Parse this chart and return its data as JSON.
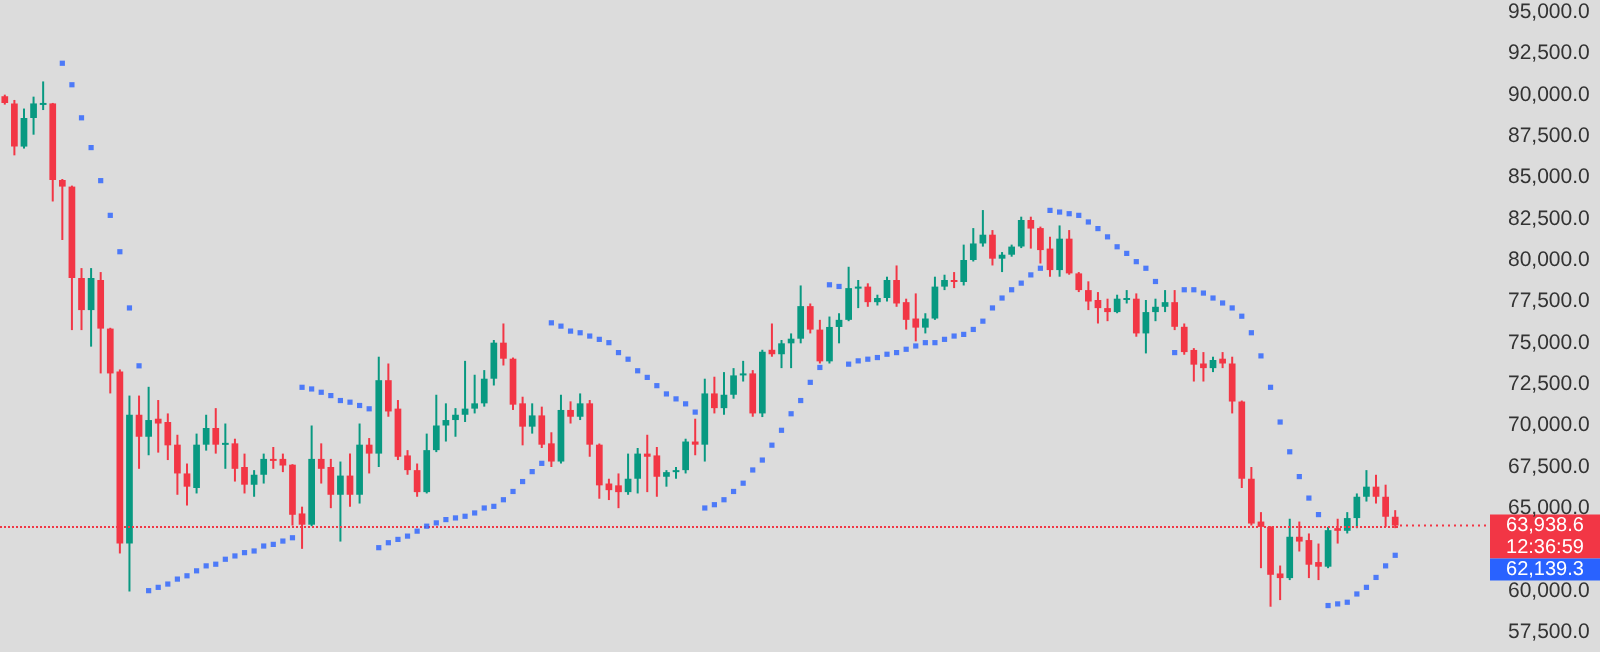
{
  "chart_data": {
    "type": "candlestick",
    "categories": [
      null,
      null,
      null,
      null,
      null,
      null,
      null,
      null,
      null,
      null,
      null,
      null,
      null,
      null,
      null,
      null,
      null,
      null,
      null,
      null,
      null,
      null,
      null,
      null,
      null,
      null,
      null,
      null,
      null,
      null,
      null,
      null,
      null,
      null,
      null,
      null,
      null,
      null,
      null,
      null,
      null,
      null,
      null,
      null,
      null,
      null,
      null,
      null,
      null,
      null,
      null,
      null,
      null,
      null,
      null,
      null,
      null,
      null,
      null,
      null,
      null,
      null,
      null,
      null,
      null,
      null,
      null,
      null,
      null,
      null,
      null,
      null,
      null,
      null,
      null,
      null,
      null,
      null,
      null,
      null,
      null,
      null,
      null,
      null,
      null,
      null,
      null,
      null,
      null,
      null,
      null,
      null,
      null,
      null,
      null,
      null,
      null,
      null,
      null,
      null,
      null,
      null,
      null,
      null,
      null,
      null,
      null,
      null,
      null,
      null,
      null,
      null,
      null,
      null,
      null,
      null,
      null,
      null,
      null,
      null,
      null,
      null,
      null,
      null,
      null,
      null,
      null,
      null,
      null,
      null,
      null,
      null,
      null,
      null,
      null,
      null,
      null,
      null,
      null,
      null,
      null,
      null,
      null,
      null,
      null,
      null
    ],
    "ohlc": [
      [
        89900,
        90000,
        89400,
        89500
      ],
      [
        89470,
        89680,
        86330,
        86860
      ],
      [
        86860,
        89160,
        86740,
        88590
      ],
      [
        88590,
        89880,
        87580,
        89470
      ],
      [
        89470,
        90800,
        89070,
        89500
      ],
      [
        89470,
        89500,
        83540,
        84840
      ],
      [
        84840,
        84900,
        81210,
        84440
      ],
      [
        84440,
        84500,
        75760,
        78910
      ],
      [
        78910,
        79510,
        75760,
        76970
      ],
      [
        76970,
        79510,
        74760,
        78910
      ],
      [
        78790,
        79270,
        73140,
        75850
      ],
      [
        75850,
        75900,
        71930,
        73140
      ],
      [
        73260,
        73380,
        62250,
        62850
      ],
      [
        62850,
        71800,
        59950,
        70640
      ],
      [
        70640,
        71800,
        67370,
        69310
      ],
      [
        69310,
        72330,
        68190,
        70320
      ],
      [
        70400,
        71530,
        68350,
        70110
      ],
      [
        70200,
        70720,
        67900,
        68790
      ],
      [
        68830,
        69430,
        65800,
        67090
      ],
      [
        67090,
        67690,
        65150,
        66290
      ],
      [
        66210,
        69500,
        65880,
        68830
      ],
      [
        68830,
        70640,
        68470,
        69840
      ],
      [
        69840,
        71040,
        68290,
        68830
      ],
      [
        68910,
        70110,
        67370,
        68940
      ],
      [
        68910,
        69190,
        66600,
        67370
      ],
      [
        67480,
        68290,
        65880,
        66410
      ],
      [
        66410,
        67290,
        65680,
        67010
      ],
      [
        67010,
        68290,
        66480,
        67970
      ],
      [
        67970,
        68690,
        67370,
        67940
      ],
      [
        67970,
        68290,
        67170,
        67570
      ],
      [
        67620,
        67650,
        63940,
        64590
      ],
      [
        64670,
        65080,
        62530,
        63990
      ],
      [
        63990,
        69990,
        63900,
        67970
      ],
      [
        67970,
        68910,
        66480,
        67370
      ],
      [
        67480,
        67970,
        64990,
        65800
      ],
      [
        65800,
        67810,
        62970,
        66960
      ],
      [
        66960,
        68290,
        65080,
        65800
      ],
      [
        65800,
        70110,
        65270,
        68830
      ],
      [
        68830,
        69230,
        67090,
        68290
      ],
      [
        68290,
        74150,
        67480,
        72730
      ],
      [
        72730,
        73740,
        70520,
        70840
      ],
      [
        71010,
        71530,
        67900,
        68100
      ],
      [
        68180,
        68500,
        67010,
        67290
      ],
      [
        67290,
        67690,
        65680,
        65960
      ],
      [
        65960,
        69500,
        65880,
        68500
      ],
      [
        68500,
        71850,
        68380,
        69990
      ],
      [
        69990,
        71330,
        69020,
        70320
      ],
      [
        70320,
        71040,
        69310,
        70640
      ],
      [
        70640,
        73900,
        70200,
        71010
      ],
      [
        71010,
        73060,
        70720,
        71330
      ],
      [
        71330,
        73340,
        71130,
        72820
      ],
      [
        72820,
        75160,
        72410,
        75000
      ],
      [
        75000,
        76160,
        73620,
        74030
      ],
      [
        74030,
        74100,
        70930,
        71250
      ],
      [
        71330,
        71730,
        68790,
        69920
      ],
      [
        69920,
        71330,
        69500,
        70600
      ],
      [
        70600,
        71130,
        68630,
        68830
      ],
      [
        68910,
        69580,
        67480,
        67810
      ],
      [
        67810,
        71850,
        67690,
        70930
      ],
      [
        70930,
        71450,
        70110,
        70520
      ],
      [
        70520,
        71930,
        70320,
        71330
      ],
      [
        71330,
        71530,
        68100,
        68830
      ],
      [
        68830,
        68900,
        65560,
        66370
      ],
      [
        66480,
        66770,
        65480,
        66080
      ],
      [
        66370,
        67090,
        64990,
        65960
      ],
      [
        65960,
        68290,
        65800,
        66770
      ],
      [
        66770,
        68630,
        65880,
        68290
      ],
      [
        68290,
        69430,
        65960,
        68100
      ],
      [
        68180,
        68690,
        65680,
        66890
      ],
      [
        66890,
        67290,
        66290,
        67170
      ],
      [
        67170,
        67480,
        66770,
        67290
      ],
      [
        67290,
        69190,
        67090,
        69020
      ],
      [
        69020,
        70400,
        68190,
        68830
      ],
      [
        68830,
        72820,
        67810,
        71930
      ],
      [
        71930,
        72940,
        70720,
        71040
      ],
      [
        71040,
        73220,
        70640,
        71850
      ],
      [
        71850,
        73460,
        71610,
        73020
      ],
      [
        73020,
        73900,
        72650,
        73140
      ],
      [
        73140,
        73340,
        70520,
        70720
      ],
      [
        70720,
        74570,
        70500,
        74450
      ],
      [
        74570,
        76160,
        74150,
        74300
      ],
      [
        74300,
        75160,
        73460,
        74960
      ],
      [
        74960,
        75560,
        73460,
        75240
      ],
      [
        75240,
        78460,
        74960,
        77210
      ],
      [
        77210,
        77370,
        75560,
        75790
      ],
      [
        75790,
        76380,
        73740,
        73870
      ],
      [
        73870,
        76580,
        73740,
        75950
      ],
      [
        75950,
        76780,
        74960,
        76380
      ],
      [
        76380,
        79590,
        76300,
        78300
      ],
      [
        78300,
        78790,
        77090,
        78390
      ],
      [
        78390,
        78590,
        77170,
        77450
      ],
      [
        77450,
        77900,
        77250,
        77700
      ],
      [
        77700,
        78990,
        77490,
        78790
      ],
      [
        78790,
        79670,
        77170,
        77370
      ],
      [
        77450,
        77660,
        75790,
        76380
      ],
      [
        76460,
        77980,
        75080,
        75910
      ],
      [
        75910,
        76780,
        75560,
        76460
      ],
      [
        76460,
        78990,
        76380,
        78390
      ],
      [
        78390,
        79110,
        78180,
        78790
      ],
      [
        78790,
        79270,
        78300,
        78670
      ],
      [
        78670,
        80930,
        78460,
        80000
      ],
      [
        80000,
        81930,
        79910,
        81000
      ],
      [
        81000,
        83020,
        80810,
        81530
      ],
      [
        81530,
        81810,
        79670,
        80080
      ],
      [
        80080,
        80480,
        79270,
        80320
      ],
      [
        80320,
        80930,
        80200,
        80810
      ],
      [
        80810,
        82620,
        80720,
        82420
      ],
      [
        82420,
        82620,
        80690,
        81900
      ],
      [
        81930,
        82020,
        79790,
        80600
      ],
      [
        80690,
        81410,
        78990,
        79390
      ],
      [
        79390,
        82090,
        78990,
        81290
      ],
      [
        81290,
        81810,
        79110,
        79190
      ],
      [
        79190,
        79270,
        78060,
        78180
      ],
      [
        78180,
        78710,
        76970,
        77490
      ],
      [
        77580,
        78060,
        76160,
        77090
      ],
      [
        77090,
        77660,
        76300,
        76850
      ],
      [
        76850,
        77900,
        76780,
        77660
      ],
      [
        77660,
        78180,
        77370,
        77700
      ],
      [
        77660,
        77980,
        75360,
        75560
      ],
      [
        75560,
        77580,
        74350,
        76850
      ],
      [
        76850,
        77660,
        76300,
        77170
      ],
      [
        77170,
        78180,
        76850,
        77450
      ],
      [
        77450,
        78180,
        75760,
        75960
      ],
      [
        75960,
        76160,
        74270,
        74430
      ],
      [
        74560,
        74670,
        72650,
        73670
      ],
      [
        73740,
        74430,
        72650,
        73460
      ],
      [
        73460,
        74150,
        73220,
        73950
      ],
      [
        74030,
        74430,
        73460,
        73740
      ],
      [
        73740,
        74150,
        70720,
        71440
      ],
      [
        71440,
        71500,
        66210,
        66770
      ],
      [
        66770,
        67480,
        63940,
        64060
      ],
      [
        64180,
        64750,
        61360,
        63860
      ],
      [
        63860,
        63900,
        59030,
        60960
      ],
      [
        61040,
        61520,
        59430,
        60760
      ],
      [
        60760,
        64350,
        60640,
        63260
      ],
      [
        63260,
        64180,
        62370,
        62970
      ],
      [
        63060,
        63460,
        60760,
        61570
      ],
      [
        61730,
        62850,
        60640,
        61450
      ],
      [
        61450,
        63860,
        61360,
        63660
      ],
      [
        63780,
        64350,
        62850,
        63620
      ],
      [
        63620,
        64750,
        63460,
        64390
      ],
      [
        64390,
        65880,
        63780,
        65680
      ],
      [
        65680,
        67290,
        65390,
        66290
      ],
      [
        66290,
        67010,
        65270,
        65680
      ],
      [
        65680,
        66410,
        63860,
        64470
      ],
      [
        64470,
        64870,
        63780,
        63938.6
      ]
    ],
    "colors": [
      "#f23645",
      "#f23645",
      "#089981",
      "#089981",
      "#089981",
      "#f23645",
      "#f23645",
      "#f23645",
      "#f23645",
      "#089981",
      "#f23645",
      "#f23645",
      "#f23645",
      "#089981",
      "#f23645",
      "#089981",
      "#f23645",
      "#f23645",
      "#f23645",
      "#f23645",
      "#089981",
      "#089981",
      "#f23645",
      "#089981",
      "#f23645",
      "#f23645",
      "#089981",
      "#089981",
      "#f23645",
      "#f23645",
      "#f23645",
      "#f23645",
      "#089981",
      "#f23645",
      "#f23645",
      "#089981",
      "#f23645",
      "#089981",
      "#f23645",
      "#089981",
      "#f23645",
      "#f23645",
      "#f23645",
      "#f23645",
      "#089981",
      "#089981",
      "#089981",
      "#089981",
      "#089981",
      "#089981",
      "#089981",
      "#089981",
      "#f23645",
      "#f23645",
      "#f23645",
      "#089981",
      "#f23645",
      "#f23645",
      "#089981",
      "#f23645",
      "#089981",
      "#f23645",
      "#f23645",
      "#f23645",
      "#f23645",
      "#089981",
      "#089981",
      "#f23645",
      "#f23645",
      "#089981",
      "#089981",
      "#089981",
      "#f23645",
      "#089981",
      "#f23645",
      "#089981",
      "#089981",
      "#089981",
      "#f23645",
      "#089981",
      "#f23645",
      "#089981",
      "#089981",
      "#089981",
      "#f23645",
      "#f23645",
      "#089981",
      "#089981",
      "#089981",
      "#089981",
      "#f23645",
      "#089981",
      "#089981",
      "#f23645",
      "#f23645",
      "#f23645",
      "#089981",
      "#089981",
      "#089981",
      "#f23645",
      "#089981",
      "#089981",
      "#089981",
      "#f23645",
      "#089981",
      "#089981",
      "#089981",
      "#f23645",
      "#f23645",
      "#f23645",
      "#089981",
      "#f23645",
      "#f23645",
      "#f23645",
      "#f23645",
      "#f23645",
      "#089981",
      "#089981",
      "#f23645",
      "#089981",
      "#089981",
      "#089981",
      "#f23645",
      "#f23645",
      "#f23645",
      "#f23645",
      "#089981",
      "#f23645",
      "#f23645",
      "#f23645",
      "#f23645",
      "#f23645",
      "#f23645",
      "#f23645",
      "#089981",
      "#f23645",
      "#f23645",
      "#f23645",
      "#089981",
      "#f23645",
      "#089981",
      "#089981",
      "#089981",
      "#f23645",
      "#f23645",
      "#f23645"
    ],
    "series": [
      {
        "type": "scatter",
        "color": "#2962ff",
        "marker": "square",
        "values": [
          null,
          null,
          null,
          null,
          null,
          null,
          91900,
          90600,
          88600,
          86800,
          84800,
          82700,
          80500,
          77100,
          73600,
          60000,
          60200,
          60400,
          60700,
          60900,
          61200,
          61500,
          61600,
          61900,
          62100,
          62300,
          62400,
          62700,
          62800,
          63000,
          63200,
          72300,
          72200,
          72000,
          71800,
          71500,
          71400,
          71200,
          71000,
          62600,
          62900,
          63100,
          63300,
          63600,
          63900,
          64100,
          64300,
          64400,
          64500,
          64700,
          65000,
          65100,
          65500,
          66000,
          66600,
          67200,
          67700,
          76200,
          76000,
          75700,
          75600,
          75400,
          75200,
          75000,
          74400,
          74000,
          73300,
          72900,
          72400,
          71900,
          71600,
          71300,
          70800,
          65000,
          65200,
          65500,
          66000,
          66500,
          67300,
          67900,
          68800,
          69700,
          70700,
          71500,
          72600,
          73500,
          78500,
          78400,
          73700,
          73900,
          74000,
          74100,
          74300,
          74400,
          74600,
          74800,
          75000,
          75000,
          75200,
          75400,
          75500,
          75800,
          76300,
          77100,
          77700,
          78200,
          78600,
          79100,
          79500,
          83000,
          82900,
          82800,
          82700,
          82300,
          81900,
          81400,
          80800,
          80400,
          79900,
          79500,
          78700,
          null,
          74400,
          78200,
          78200,
          78000,
          77700,
          77400,
          77100,
          76600,
          75600,
          74200,
          72300,
          70200,
          68400,
          66900,
          65600,
          64600,
          59100,
          59200,
          59300,
          59800,
          60200,
          60800,
          61500,
          62139.3
        ]
      }
    ],
    "ylim": [
      57500,
      95000
    ],
    "yticks": [
      {
        "value": 57500,
        "label": "57,500.0"
      },
      {
        "value": 60000,
        "label": "60,000.0"
      },
      {
        "value": 65000,
        "label": "65,000.0"
      },
      {
        "value": 67500,
        "label": "67,500.0"
      },
      {
        "value": 70000,
        "label": "70,000.0"
      },
      {
        "value": 72500,
        "label": "72,500.0"
      },
      {
        "value": 75000,
        "label": "75,000.0"
      },
      {
        "value": 77500,
        "label": "77,500.0"
      },
      {
        "value": 80000,
        "label": "80,000.0"
      },
      {
        "value": 82500,
        "label": "82,500.0"
      },
      {
        "value": 85000,
        "label": "85,000.0"
      },
      {
        "value": 87500,
        "label": "87,500.0"
      },
      {
        "value": 90000,
        "label": "90,000.0"
      },
      {
        "value": 92500,
        "label": "92,500.0"
      },
      {
        "value": 95000,
        "label": "95,000.0"
      }
    ],
    "ref_lines": [
      {
        "axis": "y",
        "value": 63938.6,
        "label": "63,938.6",
        "color": "#f23645",
        "line_style": "dotted"
      }
    ],
    "annotations": [
      "12:36:59",
      "62,139.3"
    ],
    "tick_labels": "y"
  }
}
